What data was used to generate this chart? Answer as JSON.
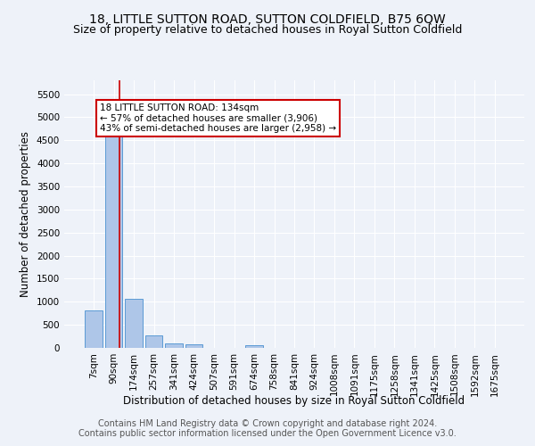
{
  "title": "18, LITTLE SUTTON ROAD, SUTTON COLDFIELD, B75 6QW",
  "subtitle": "Size of property relative to detached houses in Royal Sutton Coldfield",
  "xlabel": "Distribution of detached houses by size in Royal Sutton Coldfield",
  "ylabel": "Number of detached properties",
  "categories": [
    "7sqm",
    "90sqm",
    "174sqm",
    "257sqm",
    "341sqm",
    "424sqm",
    "507sqm",
    "591sqm",
    "674sqm",
    "758sqm",
    "841sqm",
    "924sqm",
    "1008sqm",
    "1091sqm",
    "1175sqm",
    "1258sqm",
    "1341sqm",
    "1425sqm",
    "1508sqm",
    "1592sqm",
    "1675sqm"
  ],
  "values": [
    820,
    4600,
    1060,
    265,
    92,
    72,
    0,
    0,
    55,
    0,
    0,
    0,
    0,
    0,
    0,
    0,
    0,
    0,
    0,
    0,
    0
  ],
  "bar_color": "#aec6e8",
  "bar_edge_color": "#5b9bd5",
  "vline_color": "#cc0000",
  "annotation_text": "18 LITTLE SUTTON ROAD: 134sqm\n← 57% of detached houses are smaller (3,906)\n43% of semi-detached houses are larger (2,958) →",
  "annotation_box_color": "#ffffff",
  "annotation_box_edge_color": "#cc0000",
  "ylim": [
    0,
    5800
  ],
  "yticks": [
    0,
    500,
    1000,
    1500,
    2000,
    2500,
    3000,
    3500,
    4000,
    4500,
    5000,
    5500
  ],
  "footer1": "Contains HM Land Registry data © Crown copyright and database right 2024.",
  "footer2": "Contains public sector information licensed under the Open Government Licence v3.0.",
  "background_color": "#eef2f9",
  "grid_color": "#ffffff",
  "title_fontsize": 10,
  "subtitle_fontsize": 9,
  "axis_fontsize": 8.5,
  "tick_fontsize": 7.5,
  "footer_fontsize": 7
}
